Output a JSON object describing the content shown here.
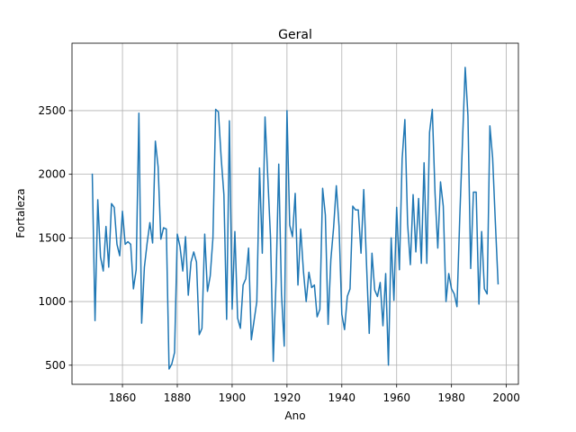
{
  "chart_data": {
    "type": "line",
    "title": "Geral",
    "x_label": "Ano",
    "y_label": "Fortaleza",
    "x": [
      1849,
      1850,
      1851,
      1852,
      1853,
      1854,
      1855,
      1856,
      1857,
      1858,
      1859,
      1860,
      1861,
      1862,
      1863,
      1864,
      1865,
      1866,
      1867,
      1868,
      1869,
      1870,
      1871,
      1872,
      1873,
      1874,
      1875,
      1876,
      1877,
      1878,
      1879,
      1880,
      1881,
      1882,
      1883,
      1884,
      1885,
      1886,
      1887,
      1888,
      1889,
      1890,
      1891,
      1892,
      1893,
      1894,
      1895,
      1896,
      1897,
      1898,
      1899,
      1900,
      1901,
      1902,
      1903,
      1904,
      1905,
      1906,
      1907,
      1908,
      1909,
      1910,
      1911,
      1912,
      1913,
      1914,
      1915,
      1916,
      1917,
      1918,
      1919,
      1920,
      1921,
      1922,
      1923,
      1924,
      1925,
      1926,
      1927,
      1928,
      1929,
      1930,
      1931,
      1932,
      1933,
      1934,
      1935,
      1936,
      1937,
      1938,
      1939,
      1940,
      1941,
      1942,
      1943,
      1944,
      1945,
      1946,
      1947,
      1948,
      1949,
      1950,
      1951,
      1952,
      1953,
      1954,
      1955,
      1956,
      1957,
      1958,
      1959,
      1960,
      1961,
      1962,
      1963,
      1964,
      1965,
      1966,
      1967,
      1968,
      1969,
      1970,
      1971,
      1972,
      1973,
      1974,
      1975,
      1976,
      1977,
      1978,
      1979,
      1980,
      1981,
      1982,
      1983,
      1984,
      1985,
      1986,
      1987,
      1988,
      1989,
      1990,
      1991,
      1992,
      1993,
      1994,
      1995,
      1996,
      1997
    ],
    "series": [
      {
        "color": "#1f77b4",
        "values": [
          2000,
          850,
          1800,
          1350,
          1240,
          1590,
          1270,
          1770,
          1740,
          1450,
          1360,
          1710,
          1450,
          1470,
          1450,
          1100,
          1250,
          2480,
          830,
          1270,
          1460,
          1620,
          1460,
          2260,
          2060,
          1490,
          1580,
          1570,
          470,
          510,
          600,
          1530,
          1430,
          1240,
          1510,
          1050,
          1310,
          1390,
          1310,
          740,
          790,
          1530,
          1080,
          1200,
          1500,
          2510,
          2490,
          2130,
          1840,
          860,
          2420,
          940,
          1550,
          870,
          790,
          1130,
          1180,
          1420,
          700,
          850,
          1000,
          2050,
          1380,
          2450,
          1980,
          1500,
          530,
          1150,
          2080,
          1060,
          650,
          2500,
          1600,
          1510,
          1850,
          1130,
          1570,
          1240,
          1000,
          1230,
          1110,
          1130,
          880,
          940,
          1890,
          1680,
          820,
          1330,
          1580,
          1910,
          1590,
          900,
          780,
          1040,
          1100,
          1750,
          1720,
          1720,
          1380,
          1880,
          1300,
          750,
          1380,
          1090,
          1040,
          1150,
          810,
          1220,
          500,
          1500,
          1010,
          1740,
          1250,
          2120,
          2430,
          1610,
          1290,
          1840,
          1390,
          1810,
          1300,
          2090,
          1300,
          2330,
          2510,
          1850,
          1420,
          1940,
          1750,
          1000,
          1220,
          1100,
          1060,
          960,
          1650,
          2250,
          2840,
          2460,
          1260,
          1860,
          1860,
          980,
          1550,
          1100,
          1060,
          2380,
          2130,
          1620,
          1140
        ]
      }
    ],
    "xlim": [
      1841.6,
      2004.4
    ],
    "ylim": [
      350,
      3030
    ],
    "xticks": [
      1860,
      1880,
      1900,
      1920,
      1940,
      1960,
      1980,
      2000
    ],
    "yticks": [
      500,
      1000,
      1500,
      2000,
      2500
    ],
    "grid": true
  }
}
